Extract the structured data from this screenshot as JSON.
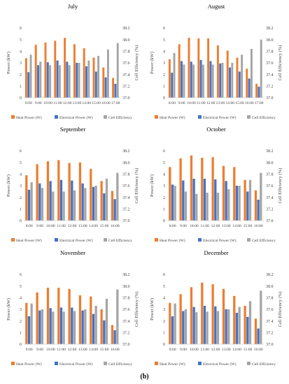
{
  "figure_label": "(b)",
  "colors": {
    "heat": "#ED7D31",
    "electrical": "#4472C4",
    "efficiency": "#A5A5A5"
  },
  "chart_data": [
    {
      "type": "bar",
      "title": "July",
      "categories": [
        "8:00",
        "9:00",
        "10:00",
        "11:00",
        "12:00",
        "13:00",
        "14:00",
        "15:00",
        "16:00",
        "17:00"
      ],
      "ylabel": "Power (kW)",
      "y2label": "Cell Efficiency (%)",
      "ylim": [
        0,
        6
      ],
      "yticks": [
        "0",
        "1",
        "2",
        "3",
        "4",
        "5",
        "6"
      ],
      "y2lim": [
        37.0,
        38.2
      ],
      "y2ticks": [
        "37.0",
        "37.2",
        "37.4",
        "37.6",
        "37.8",
        "38.0",
        "38.2"
      ],
      "legend_position": "bottom",
      "grid": false,
      "series": [
        {
          "name": "Heat  Power (W)",
          "axis": "left",
          "values": [
            3.4,
            4.55,
            4.75,
            4.9,
            5.15,
            4.6,
            4.25,
            3.45,
            2.6,
            1.7
          ]
        },
        {
          "name": "Electrical  Power (W)",
          "axis": "left",
          "values": [
            2.2,
            2.8,
            3.05,
            3.2,
            3.1,
            3.0,
            2.7,
            2.25,
            1.75,
            1.2
          ]
        },
        {
          "name": "Cell Efficiency",
          "axis": "right",
          "values": [
            37.74,
            37.62,
            37.56,
            37.56,
            37.56,
            37.6,
            37.64,
            37.72,
            37.83,
            37.94
          ]
        }
      ]
    },
    {
      "type": "bar",
      "title": "August",
      "categories": [
        "8:00",
        "9:00",
        "10:00",
        "11:00",
        "12:00",
        "13:00",
        "14:00",
        "15:00",
        "16:00",
        "17:00"
      ],
      "ylabel": "Power (kW)",
      "y2label": "Cell Efficiency (%)",
      "ylim": [
        0,
        6
      ],
      "yticks": [
        "0",
        "1",
        "2",
        "3",
        "4",
        "5",
        "6"
      ],
      "y2lim": [
        37.0,
        38.2
      ],
      "y2ticks": [
        "37.0",
        "37.2",
        "37.4",
        "37.6",
        "37.8",
        "38.0",
        "38.2"
      ],
      "legend_position": "bottom",
      "grid": false,
      "series": [
        {
          "name": "Heat  Power (W)",
          "axis": "left",
          "values": [
            3.3,
            4.6,
            5.15,
            5.1,
            5.1,
            4.5,
            4.05,
            3.45,
            2.5,
            1.2
          ]
        },
        {
          "name": "Electrical  Power (W)",
          "axis": "left",
          "values": [
            2.15,
            3.15,
            3.1,
            3.25,
            3.15,
            2.95,
            2.6,
            2.25,
            1.65,
            0.95
          ]
        },
        {
          "name": "Cell Efficiency",
          "axis": "right",
          "values": [
            37.77,
            37.57,
            37.57,
            37.57,
            37.57,
            37.6,
            37.6,
            37.74,
            37.84,
            38.0
          ]
        }
      ]
    },
    {
      "type": "bar",
      "title": "September",
      "categories": [
        "8:00",
        "9:00",
        "10:00",
        "11:00",
        "12:00",
        "13:00",
        "14:00",
        "15:00",
        "16:00"
      ],
      "ylabel": "Power (kW)",
      "y2label": "Cell Efficiency (%)",
      "ylim": [
        0,
        6
      ],
      "yticks": [
        "0",
        "1",
        "2",
        "3",
        "4",
        "5",
        "6"
      ],
      "y2lim": [
        37.0,
        38.2
      ],
      "y2ticks": [
        "37.0",
        "37.2",
        "37.4",
        "37.6",
        "37.8",
        "38.0",
        "38.2"
      ],
      "legend_position": "bottom",
      "grid": false,
      "series": [
        {
          "name": "Heat  Power (W)",
          "axis": "left",
          "values": [
            3.9,
            4.85,
            5.1,
            5.2,
            4.95,
            5.0,
            4.45,
            3.4,
            2.55
          ]
        },
        {
          "name": "Electrical  Power (W)",
          "axis": "left",
          "values": [
            2.65,
            3.2,
            3.4,
            3.5,
            3.45,
            3.2,
            2.9,
            2.35,
            1.85
          ]
        },
        {
          "name": "Cell Efficiency",
          "axis": "right",
          "values": [
            37.66,
            37.56,
            37.5,
            37.5,
            37.52,
            37.56,
            37.6,
            37.72,
            37.82
          ]
        }
      ]
    },
    {
      "type": "bar",
      "title": "October",
      "categories": [
        "8:00",
        "9:00",
        "10:00",
        "11:00",
        "12:00",
        "13:00",
        "14:00",
        "15:00",
        "16:00"
      ],
      "ylabel": "Power (kW)",
      "y2label": "Cell Efficiency (%)",
      "ylim": [
        0,
        6
      ],
      "yticks": [
        "0",
        "1",
        "2",
        "3",
        "4",
        "5",
        "6"
      ],
      "y2lim": [
        37.0,
        38.2
      ],
      "y2ticks": [
        "37.0",
        "37.2",
        "37.4",
        "37.6",
        "37.8",
        "38.0",
        "38.2"
      ],
      "legend_position": "bottom",
      "grid": false,
      "series": [
        {
          "name": "Heat  Power (W)",
          "axis": "left",
          "values": [
            4.6,
            5.35,
            5.6,
            5.4,
            5.45,
            4.7,
            4.6,
            3.5,
            2.6
          ]
        },
        {
          "name": "Electrical  Power (W)",
          "axis": "left",
          "values": [
            3.1,
            3.45,
            3.6,
            3.6,
            3.55,
            3.4,
            3.0,
            2.5,
            1.8
          ]
        },
        {
          "name": "Cell Efficiency",
          "axis": "right",
          "values": [
            37.6,
            37.5,
            37.46,
            37.48,
            37.48,
            37.54,
            37.6,
            37.7,
            37.82
          ]
        }
      ]
    },
    {
      "type": "bar",
      "title": "November",
      "categories": [
        "8:00",
        "9:00",
        "10:00",
        "11:00",
        "12:00",
        "13:00",
        "14:00",
        "15:00",
        "16:00"
      ],
      "ylabel": "Power (kW)",
      "y2label": "Cell Efficiency (%)",
      "ylim": [
        0,
        6
      ],
      "yticks": [
        "0",
        "1",
        "2",
        "3",
        "4",
        "5",
        "6"
      ],
      "y2lim": [
        37.0,
        38.2
      ],
      "y2ticks": [
        "37.0",
        "37.2",
        "37.4",
        "37.6",
        "37.8",
        "38.0",
        "38.2"
      ],
      "legend_position": "bottom",
      "grid": false,
      "series": [
        {
          "name": "Heat  Power (W)",
          "axis": "left",
          "values": [
            3.55,
            4.45,
            4.85,
            4.85,
            4.75,
            4.2,
            4.1,
            3.0,
            1.65
          ]
        },
        {
          "name": "Electrical  Power (W)",
          "axis": "left",
          "values": [
            2.4,
            2.9,
            3.1,
            3.15,
            3.15,
            2.9,
            2.6,
            2.05,
            1.2
          ]
        },
        {
          "name": "Cell Efficiency",
          "axis": "right",
          "values": [
            37.7,
            37.6,
            37.56,
            37.56,
            37.57,
            37.6,
            37.66,
            37.78,
            37.94
          ]
        }
      ]
    },
    {
      "type": "bar",
      "title": "December",
      "categories": [
        "8:00",
        "9:00",
        "10:00",
        "11:00",
        "12:00",
        "13:00",
        "14:00",
        "15:00",
        "16:00"
      ],
      "ylabel": "Power (kW)",
      "y2label": "Cell Efficiency (%)",
      "ylim": [
        0,
        6
      ],
      "yticks": [
        "0",
        "1",
        "2",
        "3",
        "4",
        "5",
        "6"
      ],
      "y2lim": [
        37.0,
        38.2
      ],
      "y2ticks": [
        "37.0",
        "37.2",
        "37.4",
        "37.6",
        "37.8",
        "38.0",
        "38.2"
      ],
      "legend_position": "bottom",
      "grid": false,
      "series": [
        {
          "name": "Heat  Power (W)",
          "axis": "left",
          "values": [
            3.55,
            4.3,
            4.9,
            5.3,
            5.15,
            4.75,
            4.15,
            3.3,
            2.2
          ]
        },
        {
          "name": "Electrical  Power (W)",
          "axis": "left",
          "values": [
            2.4,
            2.85,
            3.2,
            3.3,
            3.25,
            3.0,
            2.7,
            2.35,
            1.35
          ]
        },
        {
          "name": "Cell Efficiency",
          "axis": "right",
          "values": [
            37.7,
            37.6,
            37.55,
            37.56,
            37.57,
            37.6,
            37.64,
            37.74,
            37.92
          ]
        }
      ]
    }
  ]
}
